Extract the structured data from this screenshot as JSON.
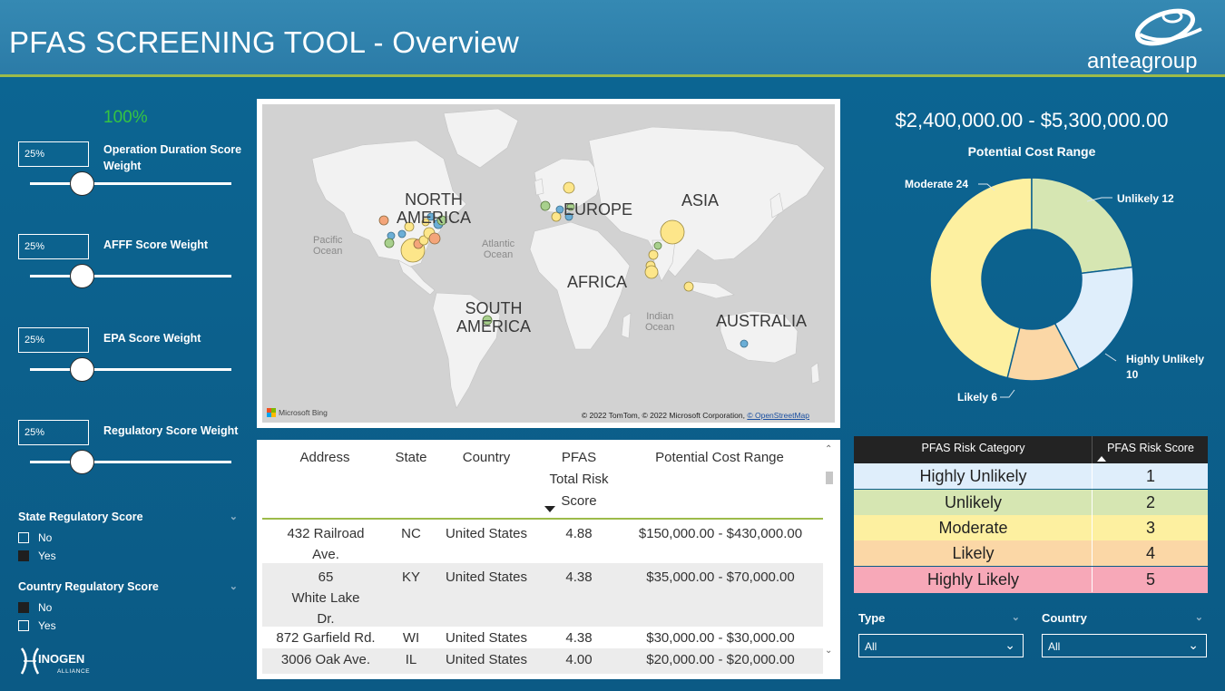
{
  "header": {
    "title": "PFAS SCREENING TOOL - Overview",
    "logo_text": "anteagroup"
  },
  "weights": {
    "total": "100%",
    "items": [
      {
        "value": "25%",
        "label": "Operation Duration Score Weight"
      },
      {
        "value": "25%",
        "label": "AFFF Score Weight"
      },
      {
        "value": "25%",
        "label": "EPA Score Weight"
      },
      {
        "value": "25%",
        "label": "Regulatory Score Weight"
      }
    ]
  },
  "filters": {
    "state": {
      "title": "State Regulatory Score",
      "options": [
        {
          "label": "No",
          "checked": false
        },
        {
          "label": "Yes",
          "checked": true
        }
      ]
    },
    "country": {
      "title": "Country Regulatory Score",
      "options": [
        {
          "label": "No",
          "checked": true
        },
        {
          "label": "Yes",
          "checked": false
        }
      ]
    }
  },
  "inogen": {
    "brand": "INOGEN",
    "sub": "ALLIANCE"
  },
  "map": {
    "continents": {
      "north_america": "NORTH\nAMERICA",
      "south_america": "SOUTH\nAMERICA",
      "europe": "EUROPE",
      "africa": "AFRICA",
      "asia": "ASIA",
      "australia": "AUSTRALIA"
    },
    "oceans": {
      "pacific": "Pacific\nOcean",
      "atlantic": "Atlantic\nOcean",
      "indian": "Indian\nOcean"
    },
    "bing": "Microsoft Bing",
    "copyright": "© 2022 TomTom, © 2022 Microsoft Corporation,",
    "osm": "© OpenStreetMap"
  },
  "sites_table": {
    "columns": [
      "Address",
      "State",
      "Country",
      "PFAS\nTotal Risk\nScore",
      "Potential Cost Range"
    ],
    "rows": [
      {
        "address": "432 Railroad\nAve.",
        "state": "NC",
        "country": "United States",
        "score": "4.88",
        "cost": "$150,000.00 - $430,000.00"
      },
      {
        "address": "65\nWhite Lake\nDr.",
        "state": "KY",
        "country": "United States",
        "score": "4.38",
        "cost": "$35,000.00 - $70,000.00"
      },
      {
        "address": "872 Garfield Rd.",
        "state": "WI",
        "country": "United States",
        "score": "4.38",
        "cost": "$30,000.00 - $30,000.00"
      },
      {
        "address": "3006 Oak Ave.",
        "state": "IL",
        "country": "United States",
        "score": "4.00",
        "cost": "$20,000.00 - $20,000.00"
      }
    ]
  },
  "cost_summary": {
    "range": "$2,400,000.00 - $5,300,000.00",
    "label": "Potential Cost Range"
  },
  "chart_data": {
    "type": "pie",
    "title": "",
    "categories": [
      "Moderate",
      "Unlikely",
      "Highly Unlikely",
      "Likely"
    ],
    "values": [
      24,
      12,
      10,
      6
    ],
    "colors": [
      "#fdf0a0",
      "#d6e6b2",
      "#dfeefb",
      "#fbd7a6"
    ],
    "labels": [
      "Moderate 24",
      "Unlikely 12",
      "Highly Unlikely\n10",
      "Likely 6"
    ],
    "donut": true
  },
  "risk_table": {
    "headers": [
      "PFAS Risk Category",
      "PFAS Risk Score"
    ],
    "rows": [
      {
        "category": "Highly Unlikely",
        "score": "1",
        "color": "#dfeefb"
      },
      {
        "category": "Unlikely",
        "score": "2",
        "color": "#d6e6b2"
      },
      {
        "category": "Moderate",
        "score": "3",
        "color": "#fdf0a0"
      },
      {
        "category": "Likely",
        "score": "4",
        "color": "#fbd7a6"
      },
      {
        "category": "Highly Likely",
        "score": "5",
        "color": "#f7a8b8"
      }
    ]
  },
  "dropdowns": {
    "type": {
      "label": "Type",
      "value": "All"
    },
    "country": {
      "label": "Country",
      "value": "All"
    }
  },
  "icons": {
    "chevron": "chevron-down-icon",
    "sort_desc": "sort-desc-icon",
    "sort_asc": "sort-asc-icon"
  }
}
